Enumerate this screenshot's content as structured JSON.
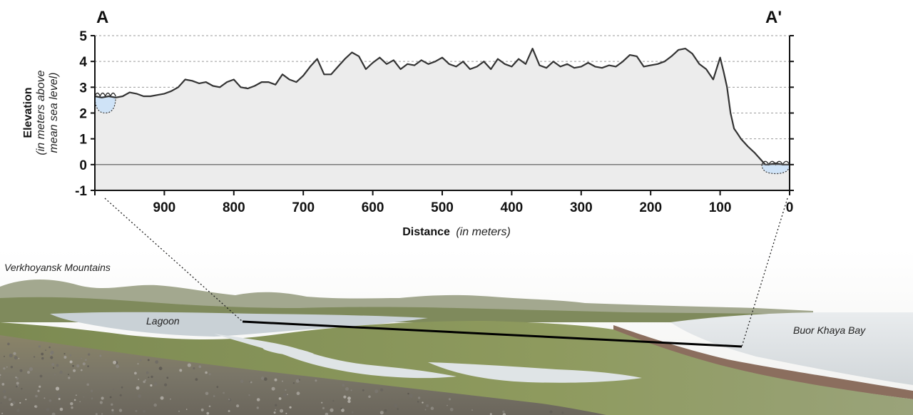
{
  "section_labels": {
    "start": "A",
    "end": "A'"
  },
  "photo_labels": {
    "mountains": "Verkhoyansk Mountains",
    "lagoon": "Lagoon",
    "bay": "Buor Khaya Bay"
  },
  "colors": {
    "profile_fill": "#ececec",
    "profile_line": "#333333",
    "water": "#cfe3f7",
    "grid": "#9a9a9a"
  },
  "chart_data": {
    "type": "area",
    "title": "",
    "xlabel": "Distance",
    "xlabel_unit": "(in meters)",
    "ylabel": "Elevation",
    "ylabel_unit_line1": "(in meters above",
    "ylabel_unit_line2": "mean sea level)",
    "x_reversed": true,
    "xlim": [
      0,
      1000
    ],
    "ylim": [
      -1,
      5
    ],
    "yticks": [
      -1,
      0,
      1,
      2,
      3,
      4,
      5
    ],
    "yticklabels": [
      "-1",
      "0",
      "1",
      "2",
      "3",
      "4",
      "5"
    ],
    "xticks": [
      900,
      800,
      700,
      600,
      500,
      400,
      300,
      200,
      100,
      0
    ],
    "xticklabels": [
      "900",
      "800",
      "700",
      "600",
      "500",
      "400",
      "300",
      "200",
      "100",
      "0"
    ],
    "grid": "horizontal dashed",
    "series": [
      {
        "x": [
          1000,
          990,
          980,
          970,
          960,
          950,
          940,
          930,
          920,
          910,
          900,
          890,
          880,
          870,
          860,
          850,
          840,
          830,
          820,
          810,
          800,
          790,
          780,
          770,
          760,
          750,
          740,
          730,
          720,
          710,
          700,
          690,
          680,
          670,
          660,
          650,
          640,
          630,
          620,
          610,
          600,
          590,
          580,
          570,
          560,
          550,
          540,
          530,
          520,
          510,
          500,
          490,
          480,
          470,
          460,
          450,
          440,
          430,
          420,
          410,
          400,
          390,
          380,
          370,
          360,
          350,
          340,
          330,
          320,
          310,
          300,
          290,
          280,
          270,
          260,
          250,
          240,
          230,
          220,
          210,
          200,
          190,
          180,
          170,
          160,
          150,
          140,
          130,
          120,
          110,
          100,
          95,
          90,
          85,
          80,
          75,
          70,
          60,
          50,
          40,
          35,
          30,
          20,
          10,
          0
        ],
        "values": [
          2.65,
          2.6,
          2.65,
          2.6,
          2.65,
          2.8,
          2.75,
          2.65,
          2.65,
          2.7,
          2.75,
          2.85,
          3.0,
          3.3,
          3.25,
          3.15,
          3.2,
          3.05,
          3.0,
          3.2,
          3.3,
          3.0,
          2.95,
          3.05,
          3.2,
          3.2,
          3.1,
          3.5,
          3.3,
          3.2,
          3.45,
          3.8,
          4.1,
          3.5,
          3.5,
          3.8,
          4.1,
          4.35,
          4.2,
          3.7,
          3.95,
          4.15,
          3.9,
          4.05,
          3.7,
          3.9,
          3.85,
          4.05,
          3.9,
          4.0,
          4.15,
          3.9,
          3.8,
          4.0,
          3.7,
          3.8,
          4.0,
          3.7,
          4.1,
          3.9,
          3.8,
          4.1,
          3.9,
          4.5,
          3.85,
          3.75,
          4.0,
          3.8,
          3.9,
          3.75,
          3.8,
          3.95,
          3.8,
          3.75,
          3.85,
          3.8,
          4.0,
          4.25,
          4.2,
          3.8,
          3.85,
          3.9,
          4.0,
          4.2,
          4.45,
          4.5,
          4.3,
          3.9,
          3.7,
          3.3,
          4.15,
          3.6,
          3.0,
          2.0,
          1.4,
          1.2,
          1.0,
          0.7,
          0.45,
          0.15,
          0.0,
          0.0,
          0.05,
          0.0,
          0.0
        ]
      }
    ],
    "water_bodies": [
      {
        "name": "lagoon",
        "x_start": 1000,
        "x_end": 970,
        "surface": 2.65,
        "bottom": 2.0
      },
      {
        "name": "bay",
        "x_start": 40,
        "x_end": 0,
        "surface": 0.0,
        "bottom": -0.35
      }
    ]
  }
}
